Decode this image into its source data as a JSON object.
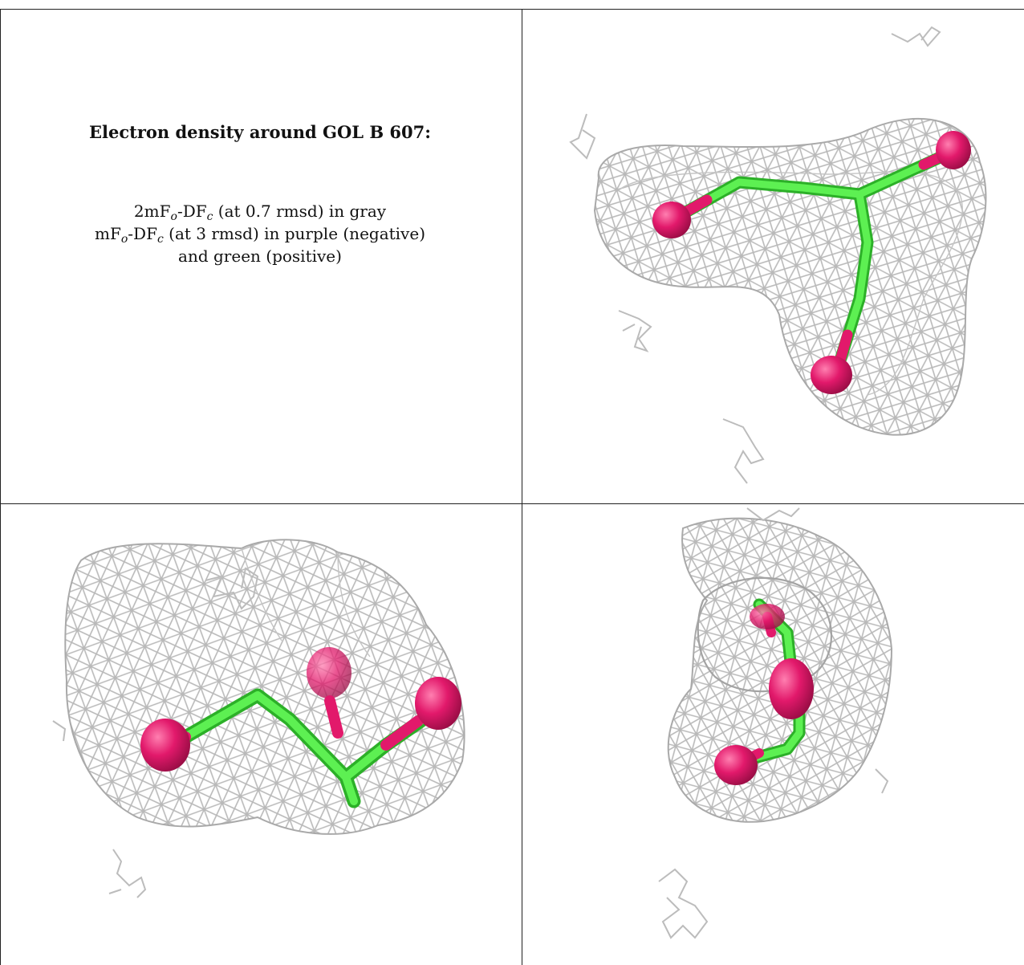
{
  "caption": {
    "title": "Electron density around GOL B 607:",
    "line1": {
      "lead": "2mF",
      "sub1": "o",
      "mid": "-DF",
      "sub2": "c",
      "tail": " (at 0.7 rmsd) in gray"
    },
    "line2": {
      "lead": "mF",
      "sub1": "o",
      "mid": "-DF",
      "sub2": "c",
      "tail": " (at 3 rmsd) in purple (negative)"
    },
    "line3": "and green (positive)"
  },
  "colors": {
    "mesh": "#b9b9b9",
    "bond": "#44e83a",
    "oxygen": "#e2196b",
    "border": "#222222"
  },
  "panels": [
    {
      "view": "top-right"
    },
    {
      "view": "bottom-left"
    },
    {
      "view": "bottom-right"
    }
  ]
}
